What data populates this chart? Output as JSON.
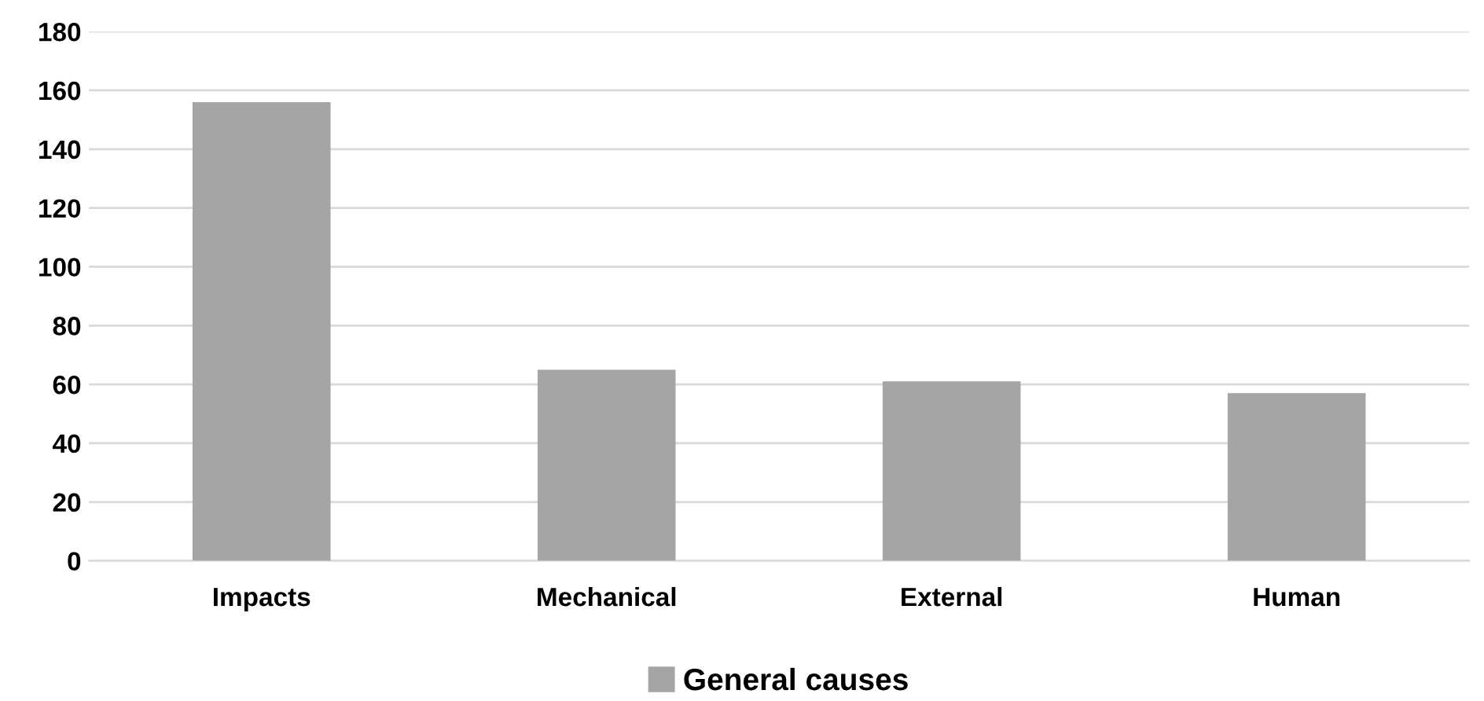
{
  "chart_data": {
    "type": "bar",
    "categories": [
      "Impacts",
      "Mechanical",
      "External",
      "Human"
    ],
    "series": [
      {
        "name": "General causes",
        "color": "#a5a5a5",
        "values": [
          156,
          65,
          61,
          57
        ]
      }
    ],
    "ylim": [
      0,
      180
    ],
    "yticks": [
      0,
      20,
      40,
      60,
      80,
      100,
      120,
      140,
      160,
      180
    ],
    "grid": "y",
    "legend": "bottom"
  }
}
